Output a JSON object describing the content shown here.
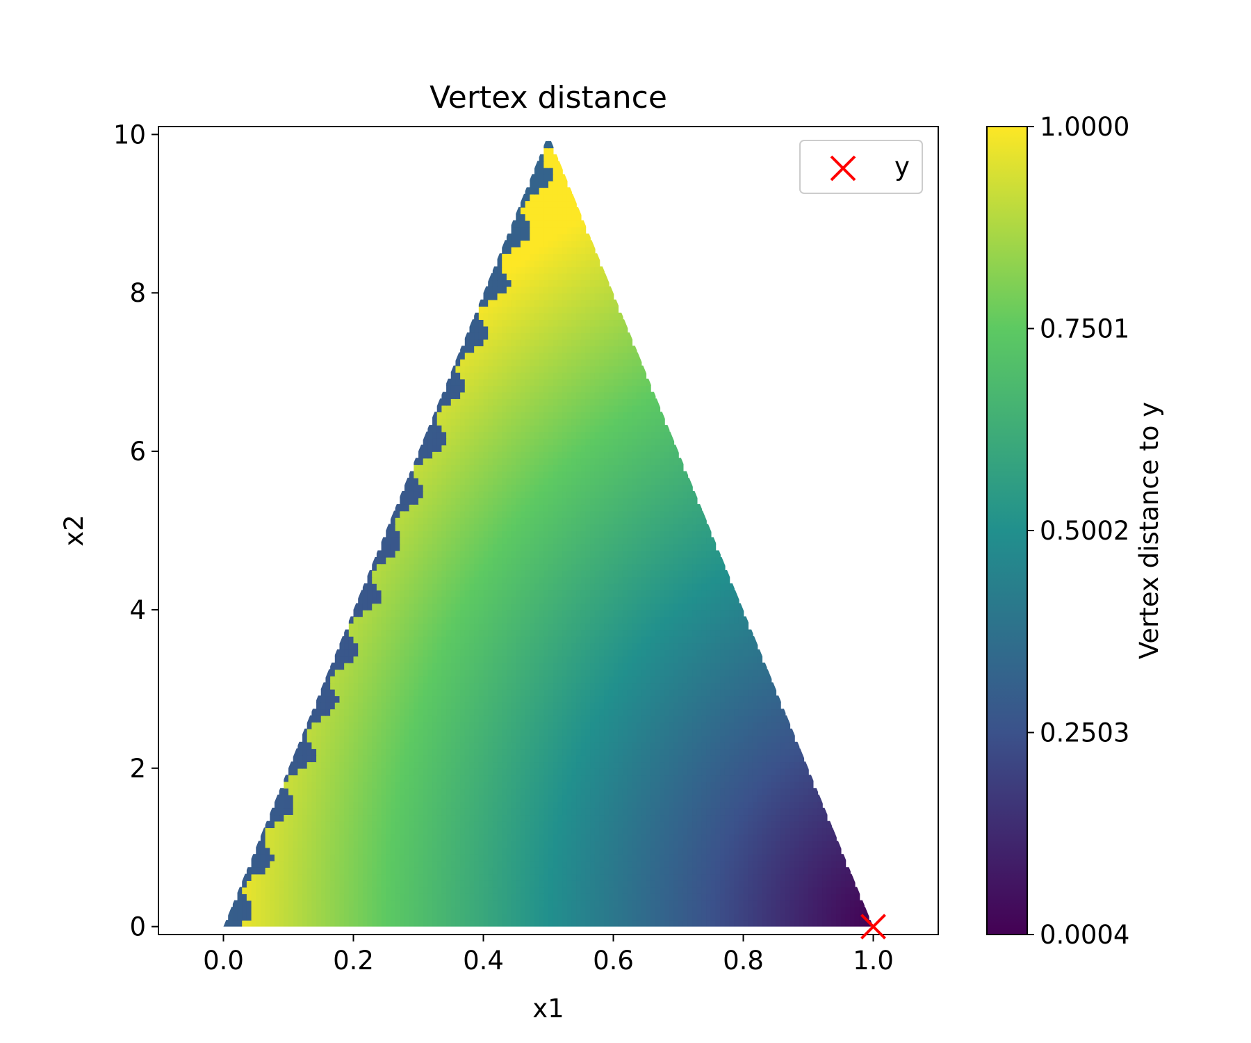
{
  "chart_data": {
    "type": "heatmap",
    "title": "Vertex distance",
    "xlabel": "x1",
    "ylabel": "x2",
    "xlim": [
      -0.1,
      1.1
    ],
    "ylim": [
      -0.1,
      10.1
    ],
    "x_ticks": [
      0.0,
      0.2,
      0.4,
      0.6,
      0.8,
      1.0
    ],
    "x_tick_labels": [
      "0.0",
      "0.2",
      "0.4",
      "0.6",
      "0.8",
      "1.0"
    ],
    "y_ticks": [
      0,
      2,
      4,
      6,
      8,
      10
    ],
    "y_tick_labels": [
      "0",
      "2",
      "4",
      "6",
      "8",
      "10"
    ],
    "region": {
      "shape": "triangle",
      "vertices": [
        [
          0.0,
          0.0
        ],
        [
          1.0,
          0.0
        ],
        [
          0.5,
          10.0
        ]
      ]
    },
    "colormap": "viridis",
    "colormap_stops": [
      "#440154",
      "#3b528b",
      "#21908d",
      "#5dc962",
      "#fde725"
    ],
    "colorbar": {
      "label": "Vertex distance to y",
      "min": 0.0004,
      "max": 1.0,
      "ticks": [
        0.0004,
        0.2503,
        0.5002,
        0.7501,
        1.0
      ],
      "tick_labels": [
        "0.0004",
        "0.2503",
        "0.5002",
        "0.7501",
        "1.0000"
      ]
    },
    "scatter": [
      {
        "name": "y",
        "x": 1.0,
        "y": 0.0,
        "marker": "x",
        "color": "#ff0000"
      }
    ],
    "legend": {
      "position": "top-right",
      "entries": [
        "y"
      ]
    }
  }
}
